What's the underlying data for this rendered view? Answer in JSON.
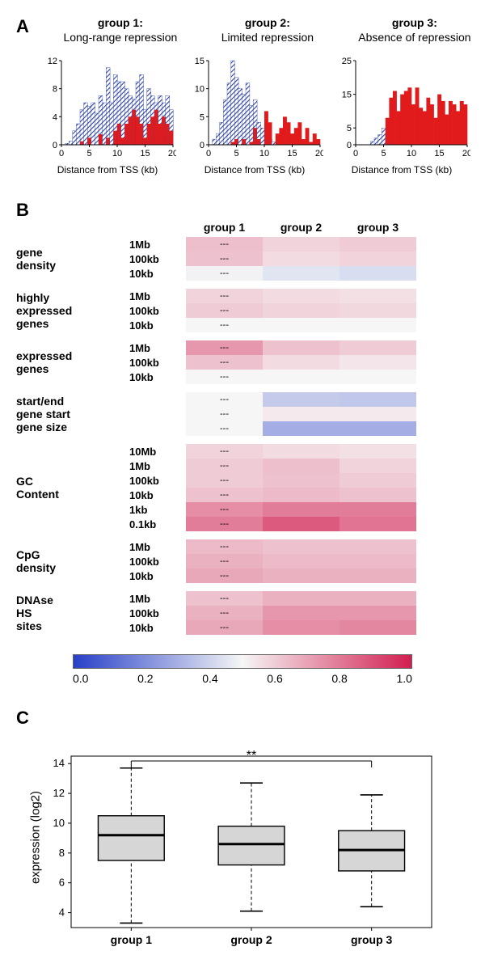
{
  "panelA": {
    "label": "A",
    "groups": [
      {
        "title_line1": "group 1:",
        "title_line2": "Long-range repression"
      },
      {
        "title_line1": "group 2:",
        "title_line2": "Limited repression"
      },
      {
        "title_line1": "group 3:",
        "title_line2": "Absence of repression"
      }
    ],
    "x_label": "Distance from TSS (kb)",
    "x_ticks": [
      0,
      5,
      10,
      15,
      20
    ],
    "histograms": [
      {
        "ymax": 12,
        "y_ticks": [
          0,
          4,
          8,
          12
        ],
        "blue": [
          0,
          0.2,
          0.5,
          2,
          3,
          5,
          6,
          5.5,
          6,
          4.5,
          7,
          6,
          11,
          6,
          10,
          9,
          9,
          8,
          7,
          6.5,
          9,
          10,
          5,
          8,
          7,
          6,
          7,
          6,
          7,
          5
        ],
        "red": [
          0,
          0,
          0,
          0,
          0,
          0.5,
          0,
          1,
          0,
          0,
          1.5,
          0,
          1,
          0,
          2,
          3,
          1,
          3,
          4,
          5,
          4,
          3,
          1,
          3,
          4,
          5,
          3,
          4,
          3,
          2
        ]
      },
      {
        "ymax": 15,
        "y_ticks": [
          0,
          5,
          10,
          15
        ],
        "blue": [
          0,
          1,
          2,
          4,
          8,
          11,
          15,
          12,
          10,
          9,
          11,
          7,
          8,
          4,
          3,
          2,
          1,
          0.5,
          0,
          0,
          0,
          0.5,
          0,
          0,
          0,
          0,
          0,
          0,
          0,
          0
        ],
        "red": [
          0,
          0,
          0,
          0,
          0,
          0,
          0.5,
          1,
          0,
          1,
          0,
          0.5,
          3,
          1,
          0,
          6,
          4,
          0,
          2,
          3,
          5,
          4,
          2,
          3,
          4,
          1,
          3,
          0.5,
          2,
          1
        ]
      },
      {
        "ymax": 25,
        "y_ticks": [
          0,
          5,
          15,
          25
        ],
        "blue": [
          0,
          0,
          0,
          0,
          1,
          2,
          3,
          5,
          3,
          1,
          0.5,
          0,
          0,
          0,
          0,
          0,
          0,
          0,
          0,
          0,
          0,
          0,
          0,
          0,
          0,
          0,
          0,
          0,
          0,
          0
        ],
        "red": [
          0,
          0,
          0,
          0,
          0,
          0,
          0,
          0,
          8,
          14,
          16,
          10,
          15,
          16,
          17,
          12,
          17,
          11,
          10,
          14,
          12,
          8,
          15,
          13,
          9,
          13,
          12,
          10,
          13,
          12
        ]
      }
    ],
    "colors": {
      "blue": "#2a3fa5",
      "blue_fill": "#5767c7",
      "red": "#e11b1b"
    }
  },
  "panelB": {
    "label": "B",
    "col_heads": [
      "group 1",
      "group 2",
      "group 3"
    ],
    "dash": "---",
    "blocks": [
      {
        "label_lines": [
          "gene",
          "density"
        ],
        "scales": [
          "1Mb",
          "100kb",
          "10kb"
        ],
        "rows": [
          [
            0.63,
            0.58,
            0.6
          ],
          [
            0.62,
            0.56,
            0.58
          ],
          [
            0.49,
            0.45,
            0.43
          ]
        ]
      },
      {
        "label_lines": [
          "highly",
          "expressed",
          "genes"
        ],
        "scales": [
          "1Mb",
          "100kb",
          "10kb"
        ],
        "rows": [
          [
            0.58,
            0.56,
            0.55
          ],
          [
            0.6,
            0.58,
            0.57
          ],
          [
            0.5,
            0.5,
            0.5
          ]
        ]
      },
      {
        "label_lines": [
          "expressed",
          "genes"
        ],
        "scales": [
          "1Mb",
          "100kb",
          "10kb"
        ],
        "rows": [
          [
            0.72,
            0.62,
            0.6
          ],
          [
            0.62,
            0.56,
            0.54
          ],
          [
            0.5,
            0.5,
            0.5
          ]
        ]
      },
      {
        "label_lines": [
          "start/end",
          "gene start",
          "gene size"
        ],
        "scales": [
          "",
          "",
          ""
        ],
        "rows": [
          [
            0.5,
            0.38,
            0.37
          ],
          [
            0.5,
            0.53,
            0.53
          ],
          [
            0.5,
            0.3,
            0.3
          ]
        ]
      },
      {
        "label_lines": [
          "GC",
          "Content"
        ],
        "scales": [
          "10Mb",
          "1Mb",
          "100kb",
          "10kb",
          "1kb",
          "0.1kb"
        ],
        "rows": [
          [
            0.58,
            0.56,
            0.55
          ],
          [
            0.6,
            0.63,
            0.58
          ],
          [
            0.6,
            0.62,
            0.6
          ],
          [
            0.62,
            0.64,
            0.62
          ],
          [
            0.74,
            0.78,
            0.78
          ],
          [
            0.78,
            0.86,
            0.8
          ]
        ]
      },
      {
        "label_lines": [
          "CpG",
          "density"
        ],
        "scales": [
          "1Mb",
          "100kb",
          "10kb"
        ],
        "rows": [
          [
            0.64,
            0.62,
            0.62
          ],
          [
            0.66,
            0.64,
            0.64
          ],
          [
            0.68,
            0.66,
            0.66
          ]
        ]
      },
      {
        "label_lines": [
          "DNAse",
          "HS",
          "sites"
        ],
        "scales": [
          "1Mb",
          "100kb",
          "10kb"
        ],
        "rows": [
          [
            0.62,
            0.66,
            0.66
          ],
          [
            0.66,
            0.72,
            0.72
          ],
          [
            0.68,
            0.74,
            0.76
          ]
        ]
      }
    ],
    "scale": {
      "min": 0.0,
      "max": 1.0,
      "ticks": [
        "0.0",
        "0.2",
        "0.4",
        "0.6",
        "0.8",
        "1.0"
      ]
    },
    "colors": {
      "low": [
        40,
        64,
        200
      ],
      "mid": [
        246,
        246,
        246
      ],
      "high": [
        210,
        30,
        80
      ]
    }
  },
  "panelC": {
    "label": "C",
    "ylabel": "expression (log2)",
    "y_ticks": [
      4,
      6,
      8,
      10,
      12,
      14
    ],
    "x_labels": [
      "group 1",
      "group 2",
      "group 3"
    ],
    "sig_label": "**",
    "boxes": [
      {
        "min": 3.3,
        "q1": 7.5,
        "med": 9.2,
        "q3": 10.5,
        "max": 13.7
      },
      {
        "min": 4.1,
        "q1": 7.2,
        "med": 8.6,
        "q3": 9.8,
        "max": 12.7
      },
      {
        "min": 4.4,
        "q1": 6.8,
        "med": 8.2,
        "q3": 9.5,
        "max": 11.9
      }
    ],
    "box_fill": "#d6d6d6",
    "axis_color": "#000000"
  }
}
